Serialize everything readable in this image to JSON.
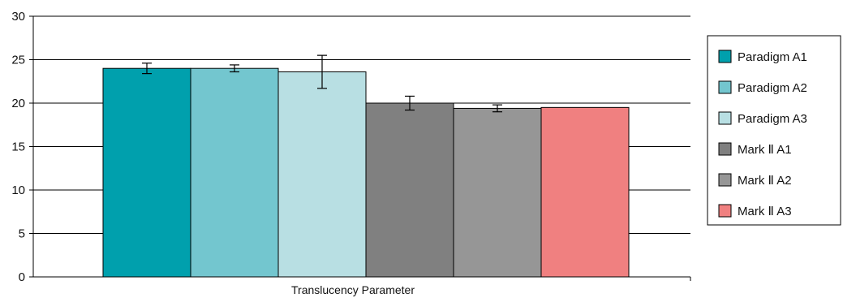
{
  "chart_data": {
    "type": "bar",
    "xlabel": "Translucency Parameter",
    "ylabel": "",
    "ylim": [
      0,
      30
    ],
    "yticks": [
      0,
      5,
      10,
      15,
      20,
      25,
      30
    ],
    "grid": true,
    "legend_position": "right",
    "categories": [
      "Translucency Parameter"
    ],
    "series": [
      {
        "name": "Paradigm A1",
        "values": [
          24.0
        ],
        "error": [
          0.6
        ],
        "color": "#00a0ad"
      },
      {
        "name": "Paradigm A2",
        "values": [
          24.0
        ],
        "error": [
          0.4
        ],
        "color": "#73c6cf"
      },
      {
        "name": "Paradigm A3",
        "values": [
          23.6
        ],
        "error": [
          1.9
        ],
        "color": "#b8dfe3"
      },
      {
        "name": "Mark Ⅱ A1",
        "values": [
          20.0
        ],
        "error": [
          0.8
        ],
        "color": "#808080"
      },
      {
        "name": "Mark Ⅱ A2",
        "values": [
          19.4
        ],
        "error": [
          0.4
        ],
        "color": "#969696"
      },
      {
        "name": "Mark Ⅱ A3",
        "values": [
          19.5
        ],
        "error": [
          0
        ],
        "color": "#f08080"
      }
    ]
  }
}
